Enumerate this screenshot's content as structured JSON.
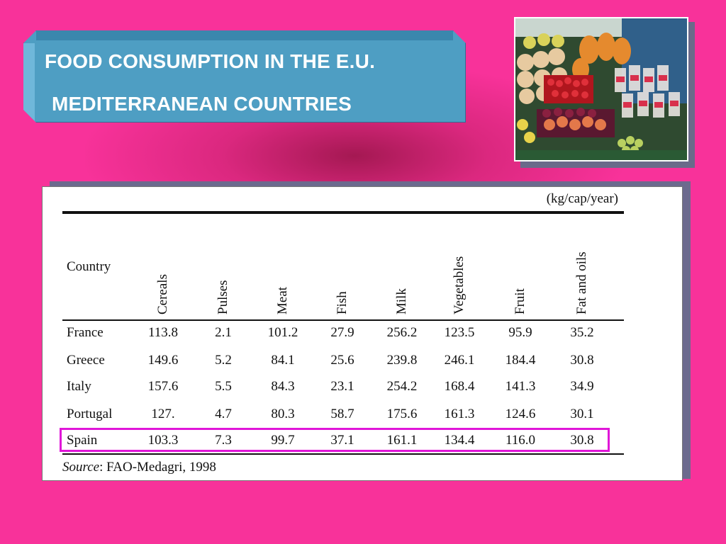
{
  "title": {
    "line1": "FOOD CONSUMPTION IN THE E.U.",
    "line2": "MEDITERRANEAN COUNTRIES"
  },
  "photo": {
    "subject": "fruit-market-stall-photo"
  },
  "table": {
    "units": "(kg/cap/year)",
    "country_header": "Country",
    "columns": [
      "Cereals",
      "Pulses",
      "Meat",
      "Fish",
      "Milk",
      "Vegetables",
      "Fruit",
      "Fat and oils"
    ],
    "rows": [
      {
        "country": "France",
        "values": [
          "113.8",
          "2.1",
          "101.2",
          "27.9",
          "256.2",
          "123.5",
          "95.9",
          "35.2"
        ]
      },
      {
        "country": "Greece",
        "values": [
          "149.6",
          "5.2",
          "84.1",
          "25.6",
          "239.8",
          "246.1",
          "184.4",
          "30.8"
        ]
      },
      {
        "country": "Italy",
        "values": [
          "157.6",
          "5.5",
          "84.3",
          "23.1",
          "254.2",
          "168.4",
          "141.3",
          "34.9"
        ]
      },
      {
        "country": "Portugal",
        "values": [
          "127.",
          "4.7",
          "80.3",
          "58.7",
          "175.6",
          "161.3",
          "124.6",
          "30.1"
        ]
      },
      {
        "country": "Spain",
        "values": [
          "103.3",
          "7.3",
          "99.7",
          "37.1",
          "161.1",
          "134.4",
          "116.0",
          "30.8"
        ]
      }
    ],
    "highlighted_row": "Spain",
    "source_label": "Source",
    "source_text": ": FAO-Medagri, 1998"
  },
  "colors": {
    "background": "#f8329a",
    "title_box": "#4e9ec3",
    "highlight": "#e016d8"
  }
}
